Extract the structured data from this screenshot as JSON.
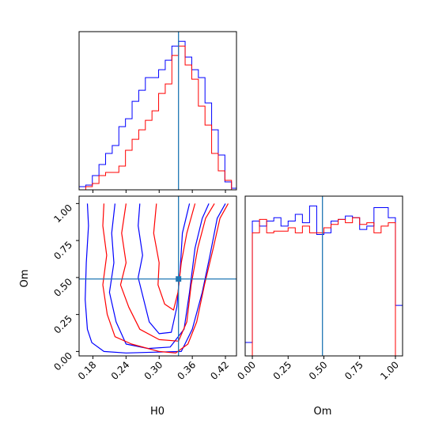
{
  "chart_data": [
    {
      "type": "histogram",
      "panel": "H0 marginal",
      "x_range": [
        0.155,
        0.44
      ],
      "truth": 0.335,
      "bin_edges": [
        0.155,
        0.167,
        0.179,
        0.191,
        0.203,
        0.215,
        0.227,
        0.239,
        0.251,
        0.263,
        0.275,
        0.287,
        0.299,
        0.311,
        0.323,
        0.335,
        0.347,
        0.359,
        0.371,
        0.383,
        0.395,
        0.407,
        0.419,
        0.431,
        0.44
      ],
      "series": [
        {
          "color": "#0000ff",
          "counts": [
            2,
            3,
            9,
            16,
            23,
            28,
            40,
            45,
            56,
            63,
            71,
            71,
            76,
            82,
            91,
            94,
            84,
            76,
            71,
            55,
            38,
            22,
            5,
            1
          ]
        },
        {
          "color": "#ff0000",
          "counts": [
            0,
            2,
            4,
            9,
            11,
            11,
            15,
            25,
            32,
            38,
            44,
            50,
            61,
            67,
            85,
            91,
            79,
            70,
            53,
            41,
            23,
            12,
            6,
            0
          ]
        }
      ],
      "x_ticks": []
    },
    {
      "type": "contour",
      "panel": "H0 vs Om",
      "x_range": [
        0.155,
        0.44
      ],
      "y_range": [
        -0.03,
        1.05
      ],
      "truth": {
        "x": 0.335,
        "y": 0.49
      },
      "xlabel": "H0",
      "ylabel": "Om",
      "x_ticks": [
        "0.18",
        "0.24",
        "0.30",
        "0.36",
        "0.42"
      ],
      "y_ticks": [
        "0.00",
        "0.25",
        "0.50",
        "0.75",
        "1.00"
      ],
      "contours": [
        {
          "color": "#0000ff",
          "points": [
            [
              0.17,
              1.0
            ],
            [
              0.172,
              0.85
            ],
            [
              0.168,
              0.6
            ],
            [
              0.166,
              0.35
            ],
            [
              0.17,
              0.15
            ],
            [
              0.178,
              0.06
            ],
            [
              0.2,
              0.0
            ],
            [
              0.24,
              -0.01
            ],
            [
              0.29,
              -0.005
            ],
            [
              0.34,
              0.0
            ],
            [
              0.36,
              0.15
            ],
            [
              0.378,
              0.4
            ],
            [
              0.392,
              0.65
            ],
            [
              0.405,
              0.9
            ],
            [
              0.42,
              1.0
            ]
          ]
        },
        {
          "color": "#0000ff",
          "points": [
            [
              0.22,
              1.0
            ],
            [
              0.214,
              0.8
            ],
            [
              0.218,
              0.6
            ],
            [
              0.21,
              0.4
            ],
            [
              0.222,
              0.2
            ],
            [
              0.24,
              0.05
            ],
            [
              0.28,
              0.02
            ],
            [
              0.32,
              0.03
            ],
            [
              0.345,
              0.15
            ],
            [
              0.355,
              0.4
            ],
            [
              0.365,
              0.7
            ],
            [
              0.378,
              0.9
            ],
            [
              0.39,
              1.0
            ]
          ]
        },
        {
          "color": "#0000ff",
          "points": [
            [
              0.265,
              1.0
            ],
            [
              0.262,
              0.85
            ],
            [
              0.27,
              0.65
            ],
            [
              0.262,
              0.5
            ],
            [
              0.272,
              0.35
            ],
            [
              0.282,
              0.2
            ],
            [
              0.3,
              0.12
            ],
            [
              0.322,
              0.13
            ],
            [
              0.332,
              0.3
            ],
            [
              0.338,
              0.55
            ],
            [
              0.342,
              0.8
            ],
            [
              0.355,
              1.0
            ]
          ]
        },
        {
          "color": "#ff0000",
          "points": [
            [
              0.2,
              1.0
            ],
            [
              0.198,
              0.85
            ],
            [
              0.205,
              0.65
            ],
            [
              0.198,
              0.45
            ],
            [
              0.206,
              0.25
            ],
            [
              0.22,
              0.1
            ],
            [
              0.25,
              0.05
            ],
            [
              0.3,
              0.0
            ],
            [
              0.33,
              -0.01
            ],
            [
              0.352,
              0.05
            ],
            [
              0.368,
              0.2
            ],
            [
              0.382,
              0.45
            ],
            [
              0.398,
              0.7
            ],
            [
              0.41,
              0.9
            ],
            [
              0.425,
              1.0
            ]
          ]
        },
        {
          "color": "#ff0000",
          "points": [
            [
              0.24,
              1.0
            ],
            [
              0.232,
              0.8
            ],
            [
              0.24,
              0.6
            ],
            [
              0.23,
              0.45
            ],
            [
              0.245,
              0.3
            ],
            [
              0.265,
              0.15
            ],
            [
              0.3,
              0.08
            ],
            [
              0.335,
              0.07
            ],
            [
              0.35,
              0.2
            ],
            [
              0.358,
              0.45
            ],
            [
              0.37,
              0.7
            ],
            [
              0.384,
              0.9
            ],
            [
              0.4,
              1.0
            ]
          ]
        },
        {
          "color": "#ff0000",
          "points": [
            [
              0.295,
              1.0
            ],
            [
              0.29,
              0.8
            ],
            [
              0.3,
              0.6
            ],
            [
              0.298,
              0.45
            ],
            [
              0.31,
              0.32
            ],
            [
              0.326,
              0.28
            ],
            [
              0.334,
              0.4
            ],
            [
              0.34,
              0.6
            ],
            [
              0.35,
              0.8
            ],
            [
              0.365,
              1.0
            ]
          ]
        }
      ]
    },
    {
      "type": "histogram",
      "panel": "Om marginal",
      "x_range": [
        -0.05,
        1.05
      ],
      "truth": 0.49,
      "xlabel": "Om",
      "x_ticks": [
        "0.00",
        "0.25",
        "0.50",
        "0.75",
        "1.00"
      ],
      "bin_edges": [
        -0.05,
        0.0,
        0.05,
        0.1,
        0.15,
        0.2,
        0.25,
        0.3,
        0.35,
        0.4,
        0.45,
        0.5,
        0.55,
        0.6,
        0.65,
        0.7,
        0.75,
        0.8,
        0.85,
        0.9,
        0.95,
        1.0,
        1.05
      ],
      "series": [
        {
          "color": "#0000ff",
          "counts": [
            8,
            80,
            77,
            80,
            82,
            77,
            80,
            84,
            79,
            89,
            72,
            73,
            80,
            81,
            83,
            82,
            75,
            77,
            88,
            88,
            82,
            30
          ]
        },
        {
          "color": "#ff0000",
          "counts": [
            0,
            73,
            81,
            73,
            74,
            74,
            76,
            73,
            77,
            73,
            73,
            76,
            78,
            81,
            79,
            82,
            78,
            79,
            73,
            77,
            79,
            0
          ]
        }
      ]
    }
  ]
}
